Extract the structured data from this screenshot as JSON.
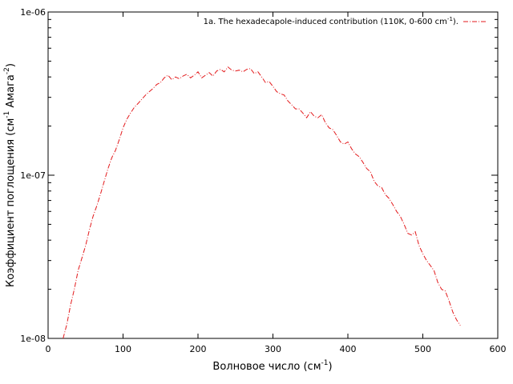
{
  "chart_data": {
    "type": "line",
    "xlabel": "Волновое число (см",
    "xlabel_sup": "-1",
    "xlabel_end": ")",
    "ylabel_a": "Коэффициент поглощения (см",
    "ylabel_sup1": "-1",
    "ylabel_b": " Амага",
    "ylabel_sup2": "-2",
    "ylabel_end": ")",
    "xlim": [
      0,
      600
    ],
    "ylim": [
      1e-08,
      1e-06
    ],
    "yscale": "log",
    "grid": false,
    "legend_position": "top-right",
    "x_ticks": [
      0,
      100,
      200,
      300,
      400,
      500,
      600
    ],
    "x_tick_labels": [
      "0",
      "100",
      "200",
      "300",
      "400",
      "500",
      "600"
    ],
    "y_ticks": [
      1e-08,
      1e-07,
      1e-06
    ],
    "y_tick_labels": [
      "1e-08",
      "1e-07",
      "1e-06"
    ],
    "series": [
      {
        "name": "1a. The hexadecapole-induced contribution (110K, 0-600 cm",
        "name_sup": "-1",
        "name_end": ").",
        "color": "#e31a1c",
        "line_style": "dash-dot",
        "x": [
          20,
          25,
          30,
          35,
          40,
          45,
          50,
          55,
          60,
          65,
          70,
          75,
          80,
          85,
          90,
          95,
          100,
          105,
          110,
          115,
          120,
          125,
          130,
          135,
          140,
          145,
          150,
          155,
          160,
          165,
          170,
          175,
          180,
          185,
          190,
          195,
          200,
          205,
          210,
          215,
          220,
          225,
          230,
          235,
          240,
          245,
          250,
          255,
          260,
          265,
          270,
          275,
          280,
          285,
          290,
          295,
          300,
          305,
          310,
          315,
          320,
          325,
          330,
          335,
          340,
          345,
          350,
          355,
          360,
          365,
          370,
          375,
          380,
          385,
          390,
          395,
          400,
          405,
          410,
          415,
          420,
          425,
          430,
          435,
          440,
          445,
          450,
          455,
          460,
          465,
          470,
          475,
          480,
          485,
          490,
          495,
          500,
          505,
          510,
          515,
          520,
          525,
          530,
          535,
          540,
          545,
          550
        ],
        "y": [
          1e-08,
          1.22e-08,
          1.6e-08,
          2e-08,
          2.6e-08,
          3.1e-08,
          3.7e-08,
          4.6e-08,
          5.6e-08,
          6.5e-08,
          7.7e-08,
          9.2e-08,
          1.1e-07,
          1.28e-07,
          1.42e-07,
          1.65e-07,
          1.95e-07,
          2.2e-07,
          2.4e-07,
          2.6e-07,
          2.75e-07,
          2.92e-07,
          3.1e-07,
          3.25e-07,
          3.4e-07,
          3.6e-07,
          3.7e-07,
          3.95e-07,
          4.1e-07,
          3.85e-07,
          4e-07,
          3.9e-07,
          4.05e-07,
          4.15e-07,
          3.95e-07,
          4.1e-07,
          4.3e-07,
          3.95e-07,
          4.1e-07,
          4.25e-07,
          4.05e-07,
          4.35e-07,
          4.45e-07,
          4.3e-07,
          4.6e-07,
          4.4e-07,
          4.35e-07,
          4.4e-07,
          4.3e-07,
          4.45e-07,
          4.5e-07,
          4.2e-07,
          4.3e-07,
          4e-07,
          3.7e-07,
          3.75e-07,
          3.5e-07,
          3.25e-07,
          3.15e-07,
          3.1e-07,
          2.85e-07,
          2.7e-07,
          2.55e-07,
          2.55e-07,
          2.4e-07,
          2.25e-07,
          2.45e-07,
          2.3e-07,
          2.25e-07,
          2.35e-07,
          2.1e-07,
          1.95e-07,
          1.9e-07,
          1.75e-07,
          1.6e-07,
          1.55e-07,
          1.6e-07,
          1.45e-07,
          1.35e-07,
          1.3e-07,
          1.2e-07,
          1.1e-07,
          1.05e-07,
          9.2e-08,
          8.6e-08,
          8.4e-08,
          7.6e-08,
          7.2e-08,
          6.6e-08,
          6e-08,
          5.6e-08,
          5e-08,
          4.4e-08,
          4.3e-08,
          4.5e-08,
          3.7e-08,
          3.3e-08,
          3e-08,
          2.8e-08,
          2.6e-08,
          2.2e-08,
          2e-08,
          1.95e-08,
          1.7e-08,
          1.45e-08,
          1.3e-08,
          1.2e-08
        ]
      }
    ]
  }
}
